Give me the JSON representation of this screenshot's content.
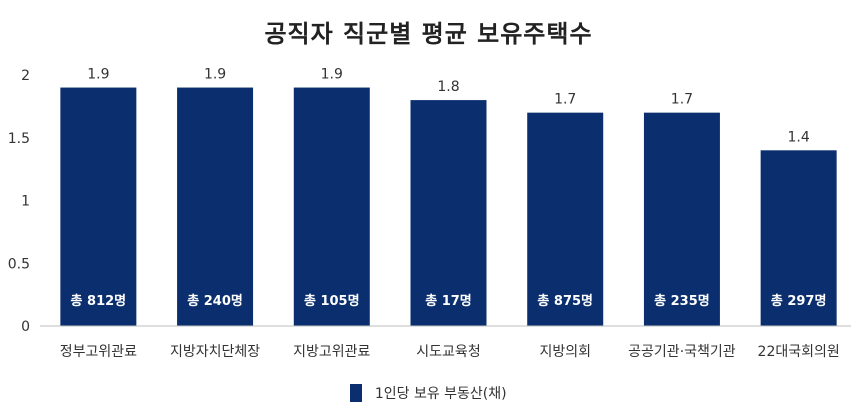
{
  "chart_data": {
    "type": "bar",
    "title": "공직자 직군별 평균 보유주택수",
    "categories": [
      "정부고위관료",
      "지방자치단체장",
      "지방고위관료",
      "시도교육청",
      "지방의회",
      "공공기관·국책기관",
      "22대국회의원"
    ],
    "series": [
      {
        "name": "1인당 보유 부동산(채)",
        "values": [
          1.9,
          1.9,
          1.9,
          1.8,
          1.7,
          1.7,
          1.4
        ]
      }
    ],
    "bar_labels": [
      "총 812명",
      "총 240명",
      "총 105명",
      "총 17명",
      "총 875명",
      "총 235명",
      "총 297명"
    ],
    "value_labels": [
      "1.9",
      "1.9",
      "1.9",
      "1.8",
      "1.7",
      "1.7",
      "1.4"
    ],
    "y_ticks": [
      "0",
      "0.5",
      "1",
      "1.5",
      "2"
    ],
    "ylim": [
      0,
      2
    ],
    "grid": false,
    "legend_position": "bottom",
    "colors": {
      "bar": "#0b2f6e",
      "bar_label": "#ffffff",
      "text": "#333333"
    }
  }
}
